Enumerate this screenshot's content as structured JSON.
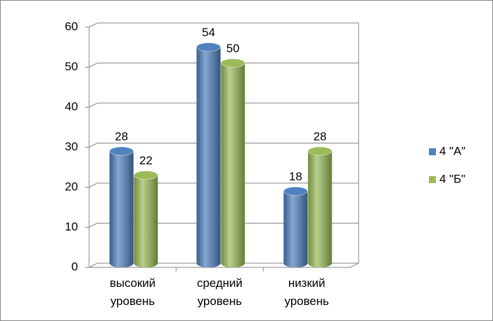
{
  "chart_data": {
    "type": "bar",
    "categories": [
      "высокий уровень",
      "средний уровень",
      "низкий уровень"
    ],
    "series": [
      {
        "name": "4 \"А\"",
        "color": "#4f81bd",
        "values": [
          28,
          54,
          18
        ]
      },
      {
        "name": "4 \"Б\"",
        "color": "#9bbb59",
        "values": [
          22,
          50,
          28
        ]
      }
    ],
    "ylim": [
      0,
      60
    ],
    "yticks": [
      0,
      10,
      20,
      30,
      40,
      50,
      60
    ],
    "grid": true,
    "legend": "right"
  }
}
